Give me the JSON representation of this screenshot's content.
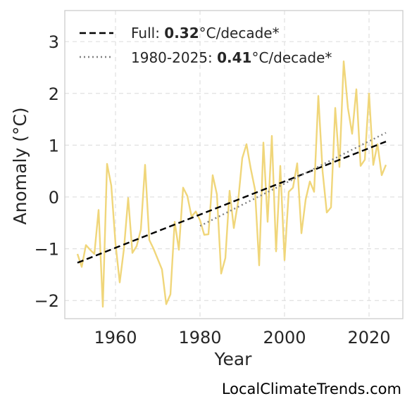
{
  "chart_data": {
    "type": "line",
    "xlabel": "Year",
    "ylabel": "Anomaly (°C)",
    "xlim": [
      1948,
      2028
    ],
    "ylim": [
      -2.35,
      3.6
    ],
    "xticks": [
      1960,
      1980,
      2000,
      2020
    ],
    "yticks": [
      -2,
      -1,
      0,
      1,
      2,
      3
    ],
    "ytick_labels": [
      "−2",
      "−1",
      "0",
      "1",
      "2",
      "3"
    ],
    "grid": true,
    "legend_position": "top-left",
    "series": [
      {
        "color": "#f0d67a",
        "style": "solid",
        "x": [
          1951,
          1952,
          1953,
          1954,
          1955,
          1956,
          1957,
          1958,
          1959,
          1960,
          1961,
          1962,
          1963,
          1964,
          1965,
          1966,
          1967,
          1968,
          1969,
          1970,
          1971,
          1972,
          1973,
          1974,
          1975,
          1976,
          1977,
          1978,
          1979,
          1980,
          1981,
          1982,
          1983,
          1984,
          1985,
          1986,
          1987,
          1988,
          1989,
          1990,
          1991,
          1992,
          1993,
          1994,
          1995,
          1996,
          1997,
          1998,
          1999,
          2000,
          2001,
          2002,
          2003,
          2004,
          2005,
          2006,
          2007,
          2008,
          2009,
          2010,
          2011,
          2012,
          2013,
          2014,
          2015,
          2016,
          2017,
          2018,
          2019,
          2020,
          2021,
          2022,
          2023,
          2024
        ],
        "y": [
          -1.1,
          -1.35,
          -0.93,
          -1.02,
          -1.1,
          -0.25,
          -2.12,
          0.64,
          0.22,
          -0.9,
          -1.65,
          -1.0,
          -0.02,
          -1.08,
          -0.95,
          -0.63,
          0.62,
          -0.83,
          -1.0,
          -1.2,
          -1.4,
          -2.07,
          -1.88,
          -0.48,
          -1.02,
          0.18,
          0.02,
          -0.38,
          -0.28,
          -0.45,
          -0.73,
          -0.72,
          0.42,
          0.05,
          -1.48,
          -1.18,
          0.12,
          -0.6,
          -0.1,
          0.75,
          1.02,
          0.55,
          0.15,
          -1.32,
          1.05,
          -0.48,
          1.18,
          -1.05,
          0.6,
          -1.22,
          0.1,
          0.18,
          0.65,
          -0.7,
          -0.05,
          0.3,
          0.1,
          1.95,
          0.5,
          -0.3,
          -0.2,
          1.72,
          0.58,
          2.62,
          1.72,
          1.22,
          2.08,
          0.6,
          0.72,
          2.0,
          0.62,
          1.02,
          0.42,
          0.62
        ]
      },
      {
        "name": "Full: 0.32°C/decade*",
        "color": "#000000",
        "style": "dashed",
        "x": [
          1951,
          2024
        ],
        "y": [
          -1.27,
          1.07
        ]
      },
      {
        "name": "1980-2025: 0.41°C/decade*",
        "color": "#808080",
        "style": "dotted",
        "x": [
          1980,
          2024
        ],
        "y": [
          -0.56,
          1.24
        ]
      }
    ]
  },
  "legend": {
    "full": {
      "prefix": "Full: ",
      "value": "0.32",
      "suffix": "°C/decade*"
    },
    "recent": {
      "prefix": "1980-2025: ",
      "value": "0.41",
      "suffix": "°C/decade*"
    }
  },
  "credit": "LocalClimateTrends.com"
}
